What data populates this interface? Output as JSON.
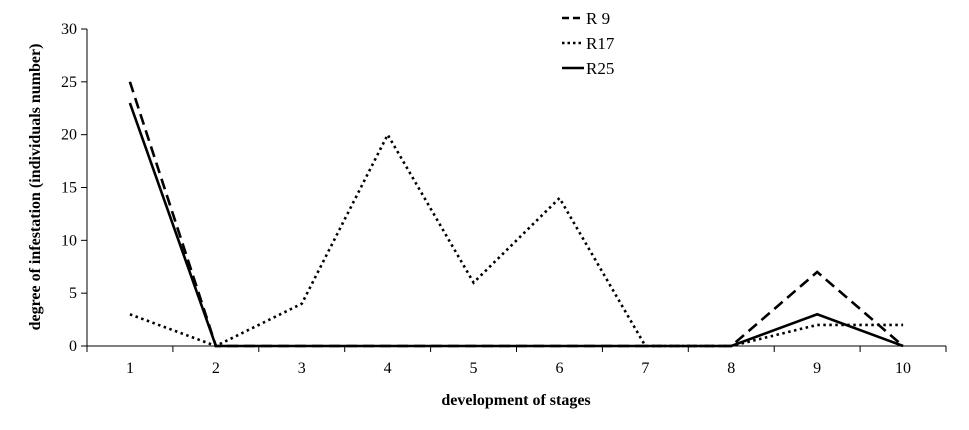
{
  "chart_data": {
    "type": "line",
    "title": "",
    "xlabel": "development of stages",
    "ylabel": "degree of infestation (individuals number)",
    "categories": [
      "1",
      "2",
      "3",
      "4",
      "5",
      "6",
      "7",
      "8",
      "9",
      "10"
    ],
    "ylim": [
      0,
      30
    ],
    "yticks": [
      0,
      5,
      10,
      15,
      20,
      25,
      30
    ],
    "grid": false,
    "legend": "top-center",
    "series": [
      {
        "name": "R 9",
        "style": "dashed",
        "values": [
          25,
          0,
          0,
          0,
          0,
          0,
          0,
          0,
          7,
          0
        ]
      },
      {
        "name": "R17",
        "style": "dotted",
        "values": [
          3,
          0,
          4,
          20,
          6,
          14,
          0,
          0,
          2,
          2
        ]
      },
      {
        "name": "R25",
        "style": "solid",
        "values": [
          23,
          0,
          0,
          0,
          0,
          0,
          0,
          0,
          3,
          0
        ]
      }
    ],
    "colors": {
      "line": "#000000",
      "axis": "#000000",
      "background": "#ffffff"
    }
  }
}
